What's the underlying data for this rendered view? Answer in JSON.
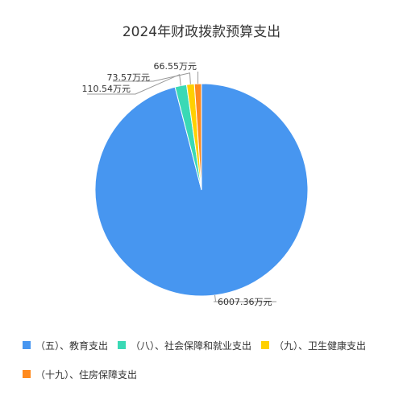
{
  "chart_data": {
    "type": "pie",
    "title": "2024年财政拨款预算支出",
    "unit": "万元",
    "slices": [
      {
        "name": "（五）、教育支出",
        "value": 6007.36,
        "label": "6007.36万元",
        "color": "#4796f0"
      },
      {
        "name": "（八）、社会保障和就业支出",
        "value": 110.54,
        "label": "110.54万元",
        "color": "#3ad9b5"
      },
      {
        "name": "（九）、卫生健康支出",
        "value": 73.57,
        "label": "73.57万元",
        "color": "#ffd000"
      },
      {
        "name": "（十九）、住房保障支出",
        "value": 66.55,
        "label": "66.55万元",
        "color": "#ff8a1e"
      }
    ],
    "legend_position": "bottom"
  }
}
